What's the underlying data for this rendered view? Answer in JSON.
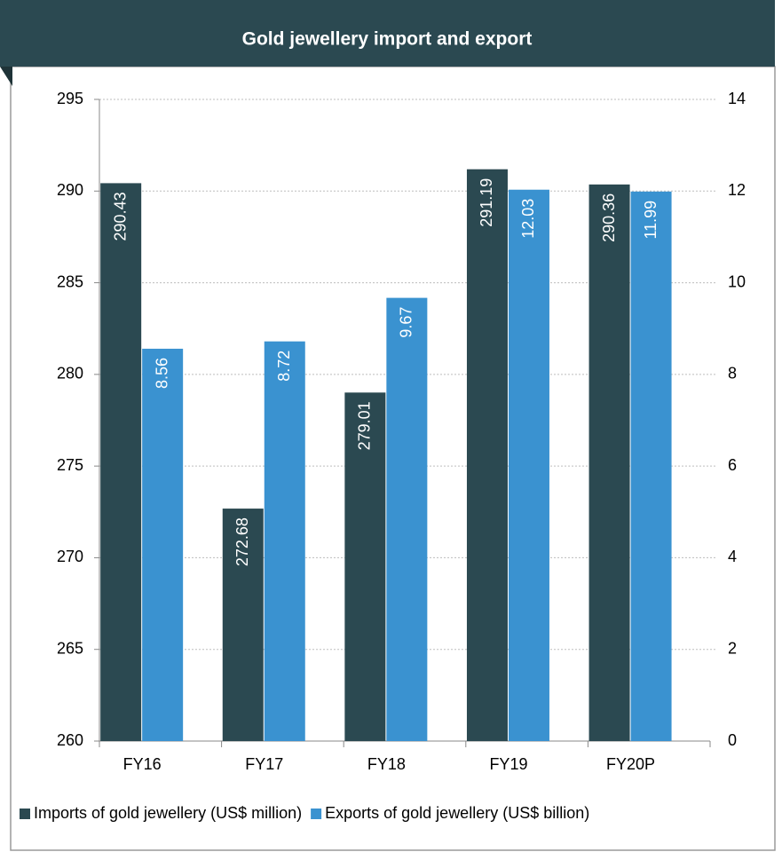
{
  "chart_data": {
    "type": "bar",
    "title": "Gold jewellery import and export",
    "categories": [
      "FY16",
      "FY17",
      "FY18",
      "FY19",
      "FY20P"
    ],
    "series": [
      {
        "name": "Imports of gold jewellery (US$ million)",
        "color": "#2b4951",
        "values": [
          290.43,
          272.68,
          279.01,
          291.19,
          290.36
        ]
      },
      {
        "name": "Exports of gold jewellery (US$ billion)",
        "color": "#3a92d0",
        "values": [
          8.56,
          8.72,
          9.67,
          12.03,
          11.99
        ],
        "axis": "y2"
      }
    ],
    "ylim": [
      260,
      295
    ],
    "yticks": [
      260,
      265,
      270,
      275,
      280,
      285,
      290,
      295
    ],
    "y2lim": [
      0,
      14
    ],
    "y2ticks": [
      0,
      2,
      4,
      6,
      8,
      10,
      12,
      14
    ],
    "grid": true,
    "legend": "bottom"
  }
}
